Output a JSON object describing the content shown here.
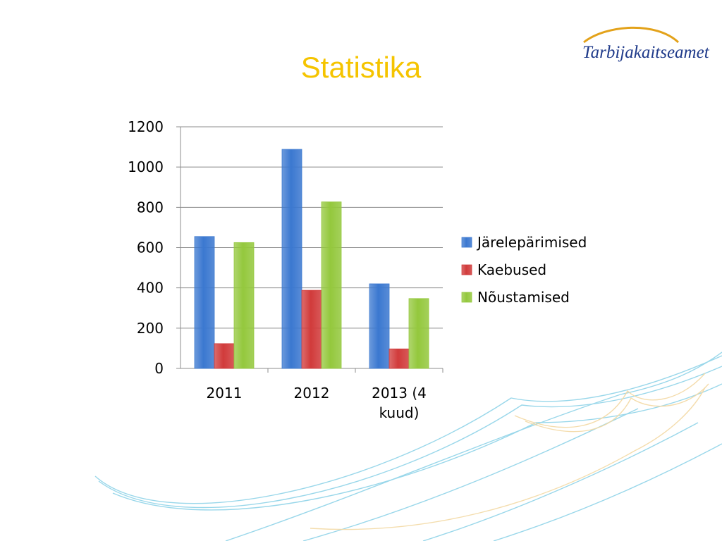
{
  "slide": {
    "title": "Statistika",
    "title_color": "#F5C400",
    "logo_text": "Tarbijakaitseamet",
    "logo_color": "#1F3A8A",
    "logo_swoosh_color": "#E3A21A"
  },
  "chart_data": {
    "type": "bar",
    "categories": [
      [
        "2011"
      ],
      [
        "2012"
      ],
      [
        "2013 (4",
        "kuud)"
      ]
    ],
    "series": [
      {
        "name": "Järelepärimised",
        "values": [
          655,
          1088,
          420
        ],
        "color": "#3B78D0"
      },
      {
        "name": "Kaebused",
        "values": [
          123,
          388,
          97
        ],
        "color": "#D13B3B"
      },
      {
        "name": "Nõustamised",
        "values": [
          625,
          827,
          347
        ],
        "color": "#94C83D"
      }
    ],
    "ylim": [
      0,
      1200
    ],
    "yticks": [
      "0",
      "200",
      "400",
      "600",
      "800",
      "1000",
      "1200"
    ],
    "grid": true,
    "legend_position": "right"
  }
}
